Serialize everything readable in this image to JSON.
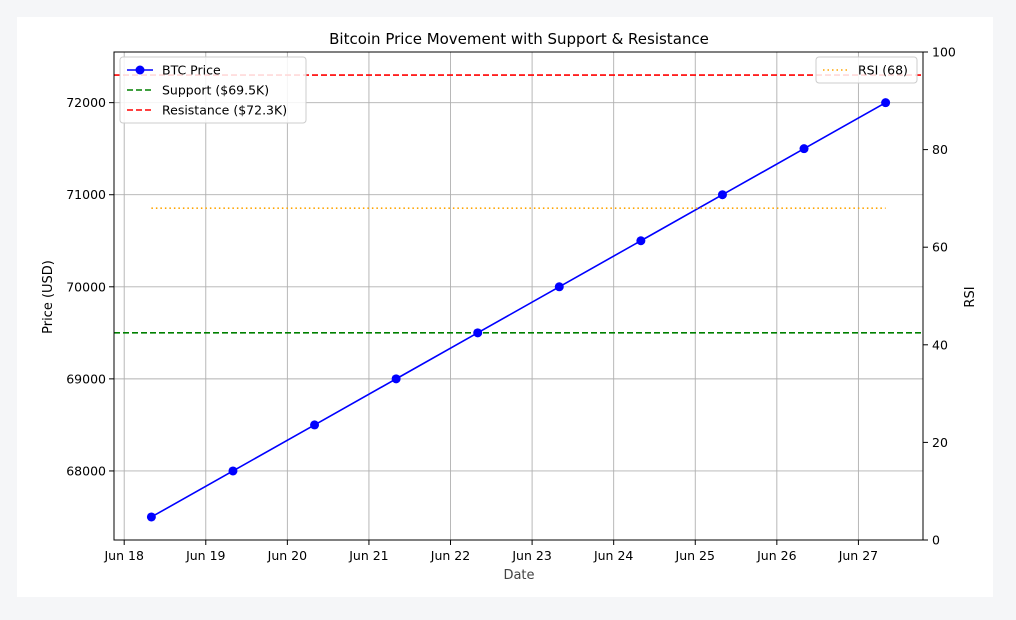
{
  "chart_data": {
    "type": "line",
    "title": "Bitcoin Price Movement with Support & Resistance",
    "xlabel": "Date",
    "ylabel": "Price (USD)",
    "y2label": "RSI",
    "x": [
      "2024-06-18T08:00",
      "2024-06-19T08:00",
      "2024-06-20T08:00",
      "2024-06-21T08:00",
      "2024-06-22T08:00",
      "2024-06-23T08:00",
      "2024-06-24T08:00",
      "2024-06-25T08:00",
      "2024-06-26T08:00",
      "2024-06-27T08:00"
    ],
    "xlim": [
      "2024-06-17T21:00",
      "2024-06-27T19:00"
    ],
    "x_ticks": [
      "Jun 18",
      "Jun 19",
      "Jun 20",
      "Jun 21",
      "Jun 22",
      "Jun 23",
      "Jun 24",
      "Jun 25",
      "Jun 26",
      "Jun 27"
    ],
    "x_tick_dates": [
      "2024-06-18",
      "2024-06-19",
      "2024-06-20",
      "2024-06-21",
      "2024-06-22",
      "2024-06-23",
      "2024-06-24",
      "2024-06-25",
      "2024-06-26",
      "2024-06-27"
    ],
    "ylim": [
      67250,
      72550
    ],
    "y_ticks": [
      68000,
      69000,
      70000,
      71000,
      72000
    ],
    "y2lim": [
      0,
      100
    ],
    "y2_ticks": [
      0,
      20,
      40,
      60,
      80,
      100
    ],
    "grid": true,
    "series": [
      {
        "name": "BTC Price",
        "axis": "left",
        "style": "solid-marker",
        "color": "#0000ff",
        "values": [
          67500,
          68000,
          68500,
          69000,
          69500,
          70000,
          70500,
          71000,
          71500,
          72000
        ]
      },
      {
        "name": "RSI (68)",
        "axis": "right",
        "style": "dotted",
        "color": "#ffa500",
        "values": [
          68,
          68,
          68,
          68,
          68,
          68,
          68,
          68,
          68,
          68
        ]
      }
    ],
    "hlines": [
      {
        "name": "Support ($69.5K)",
        "value": 69500,
        "style": "dashed",
        "color": "#008000"
      },
      {
        "name": "Resistance ($72.3K)",
        "value": 72300,
        "style": "dashed",
        "color": "#ff0000"
      }
    ],
    "legend_left": [
      "BTC Price",
      "Support ($69.5K)",
      "Resistance ($72.3K)"
    ],
    "legend_left_position": "top-left",
    "legend_right": [
      "RSI (68)"
    ],
    "legend_right_position": "top-right"
  }
}
